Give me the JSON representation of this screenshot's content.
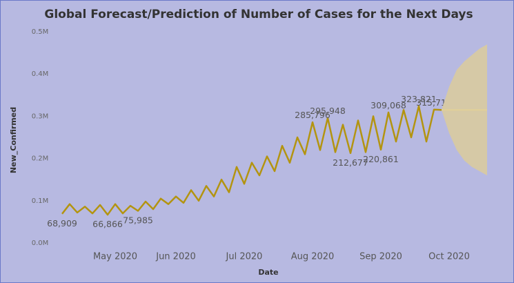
{
  "chart_data": {
    "type": "line",
    "title": "Global Forecast/Prediction of Number of Cases for the Next Days",
    "x_label": "Date",
    "y_label": "New_Confirmed",
    "categories": [
      null,
      null,
      null,
      null,
      null,
      null,
      null,
      "May 2020",
      null,
      null,
      null,
      null,
      null,
      null,
      null,
      "Jun 2020",
      null,
      null,
      null,
      null,
      null,
      null,
      null,
      null,
      "Jul 2020",
      null,
      null,
      null,
      null,
      null,
      null,
      null,
      null,
      "Aug 2020",
      null,
      null,
      null,
      null,
      null,
      null,
      null,
      null,
      "Sep 2020",
      null,
      null,
      null,
      null,
      null,
      null,
      null,
      null,
      "Oct 2020",
      null,
      null,
      null,
      null,
      null
    ],
    "series": [
      {
        "name": "New_Confirmed",
        "color": "#b39410",
        "values": [
          68909,
          92000,
          72000,
          86000,
          70000,
          90000,
          66866,
          92000,
          70000,
          88000,
          75985,
          98000,
          80000,
          105000,
          92000,
          110000,
          95000,
          125000,
          100000,
          135000,
          110000,
          150000,
          120000,
          180000,
          140000,
          190000,
          160000,
          205000,
          170000,
          230000,
          190000,
          250000,
          210000,
          285796,
          220000,
          295948,
          215000,
          280000,
          212677,
          290000,
          215000,
          300000,
          220861,
          309068,
          240000,
          315000,
          250000,
          323821,
          240000,
          315717,
          315000,
          null,
          null,
          null,
          null,
          null,
          null
        ],
        "value_labels": [
          "68,909",
          null,
          null,
          null,
          null,
          null,
          "66,866",
          null,
          null,
          null,
          "75,985",
          null,
          null,
          null,
          null,
          null,
          null,
          null,
          null,
          null,
          null,
          null,
          null,
          null,
          null,
          null,
          null,
          null,
          null,
          null,
          null,
          null,
          null,
          "285,796",
          null,
          "295,948",
          null,
          null,
          "212,677",
          null,
          null,
          null,
          "220,861",
          "309,068",
          null,
          null,
          null,
          "323,821",
          null,
          "315,717",
          null,
          null,
          null,
          null,
          null,
          null,
          null
        ]
      },
      {
        "name": "Forecast",
        "color": "#e0cf9a",
        "values": [
          null,
          null,
          null,
          null,
          null,
          null,
          null,
          null,
          null,
          null,
          null,
          null,
          null,
          null,
          null,
          null,
          null,
          null,
          null,
          null,
          null,
          null,
          null,
          null,
          null,
          null,
          null,
          null,
          null,
          null,
          null,
          null,
          null,
          null,
          null,
          null,
          null,
          null,
          null,
          null,
          null,
          null,
          null,
          null,
          null,
          null,
          null,
          null,
          null,
          null,
          315000,
          315000,
          315000,
          315000,
          315000,
          315000,
          315000
        ],
        "upper": [
          null,
          null,
          null,
          null,
          null,
          null,
          null,
          null,
          null,
          null,
          null,
          null,
          null,
          null,
          null,
          null,
          null,
          null,
          null,
          null,
          null,
          null,
          null,
          null,
          null,
          null,
          null,
          null,
          null,
          null,
          null,
          null,
          null,
          null,
          null,
          null,
          null,
          null,
          null,
          null,
          null,
          null,
          null,
          null,
          null,
          null,
          null,
          null,
          null,
          null,
          315000,
          370000,
          410000,
          430000,
          445000,
          460000,
          470000
        ],
        "lower": [
          null,
          null,
          null,
          null,
          null,
          null,
          null,
          null,
          null,
          null,
          null,
          null,
          null,
          null,
          null,
          null,
          null,
          null,
          null,
          null,
          null,
          null,
          null,
          null,
          null,
          null,
          null,
          null,
          null,
          null,
          null,
          null,
          null,
          null,
          null,
          null,
          null,
          null,
          null,
          null,
          null,
          null,
          null,
          null,
          null,
          null,
          null,
          null,
          null,
          null,
          315000,
          260000,
          220000,
          195000,
          180000,
          170000,
          160000
        ],
        "band_color": "#d6c9a6"
      }
    ],
    "ylim": [
      0,
      500000
    ],
    "yticks": [
      {
        "value": 0,
        "label": "0.0M"
      },
      {
        "value": 100000,
        "label": "0.1M"
      },
      {
        "value": 200000,
        "label": "0.2M"
      },
      {
        "value": 300000,
        "label": "0.3M"
      },
      {
        "value": 400000,
        "label": "0.4M"
      },
      {
        "value": 500000,
        "label": "0.5M"
      }
    ],
    "grid": false
  }
}
